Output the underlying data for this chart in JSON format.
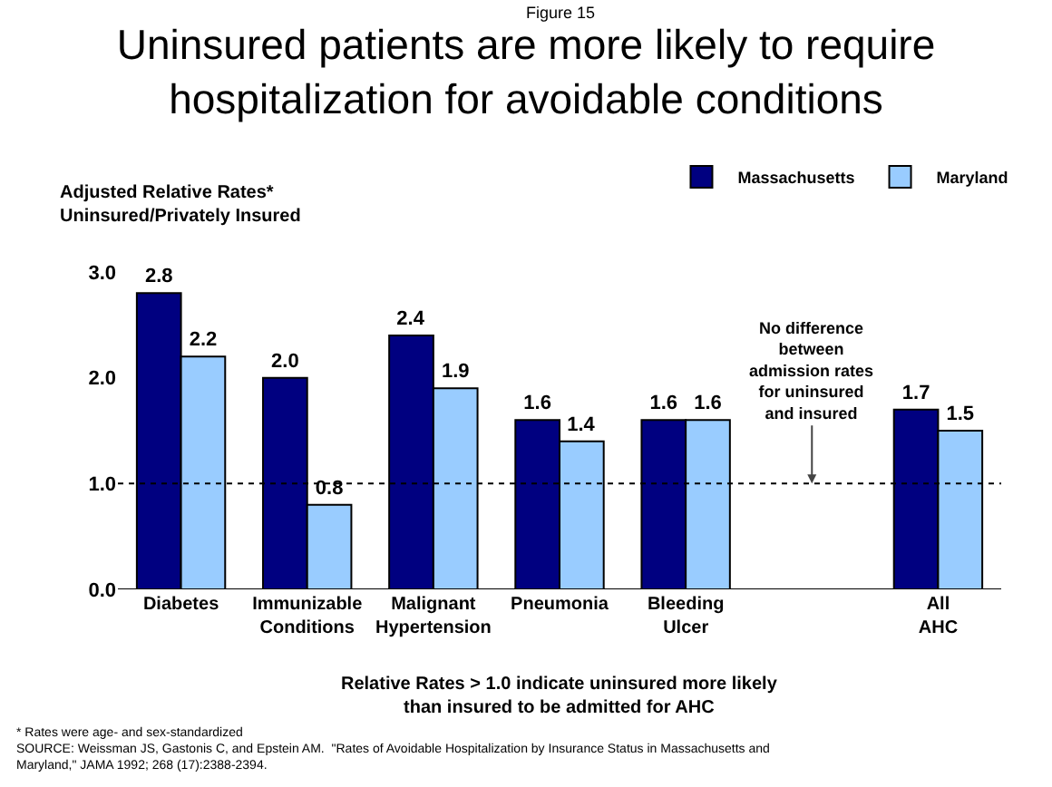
{
  "chart_data": {
    "type": "bar",
    "subtitle": "Figure 15",
    "title": "Uninsured patients are more likely to require hospitalization for avoidable conditions",
    "ylabel": "Adjusted Relative Rates*\nUninsured/Privately Insured",
    "xlabel": "Relative Rates > 1.0 indicate uninsured more likely than insured to be admitted for AHC",
    "categories": [
      "Diabetes",
      "Immunizable Conditions",
      "Malignant Hypertension",
      "Pneumonia",
      "Bleeding Ulcer",
      null,
      "All AHC"
    ],
    "series": [
      {
        "name": "Massachusetts",
        "color": "#000080",
        "values": [
          2.8,
          2.0,
          2.4,
          1.6,
          1.6,
          null,
          1.7
        ],
        "value_labels": [
          "2.8",
          "2.0",
          "2.4",
          "1.6",
          "1.6",
          null,
          "1.7"
        ]
      },
      {
        "name": "Maryland",
        "color": "#99ccff",
        "values": [
          2.2,
          0.8,
          1.9,
          1.4,
          1.6,
          null,
          1.5
        ],
        "value_labels": [
          "2.2",
          "0.8",
          "1.9",
          "1.4",
          "1.6",
          null,
          "1.5"
        ]
      }
    ],
    "ylim": [
      0,
      3.0
    ],
    "yticks": [
      {
        "value": 0,
        "label": "0.0"
      },
      {
        "value": 1,
        "label": "1.0"
      },
      {
        "value": 2,
        "label": "2.0"
      },
      {
        "value": 3,
        "label": "3.0"
      }
    ],
    "ref_lines": [
      {
        "axis": "y",
        "value": 1,
        "line_style": "dotted",
        "color": "#000000"
      }
    ],
    "legend": "top right",
    "grid": false,
    "annotations": [
      {
        "text": "No difference between admission rates for uninsured and insured",
        "y": 1.0
      },
      "* Rates were age- and sex-standardized",
      "SOURCE: Weissman JS, Gastonis C, and Epstein AM.  \"Rates of Avoidable Hospitalization by Insurance Status in Massachusetts and Maryland,\" JAMA 1992; 268 (17):2388-2394."
    ]
  }
}
